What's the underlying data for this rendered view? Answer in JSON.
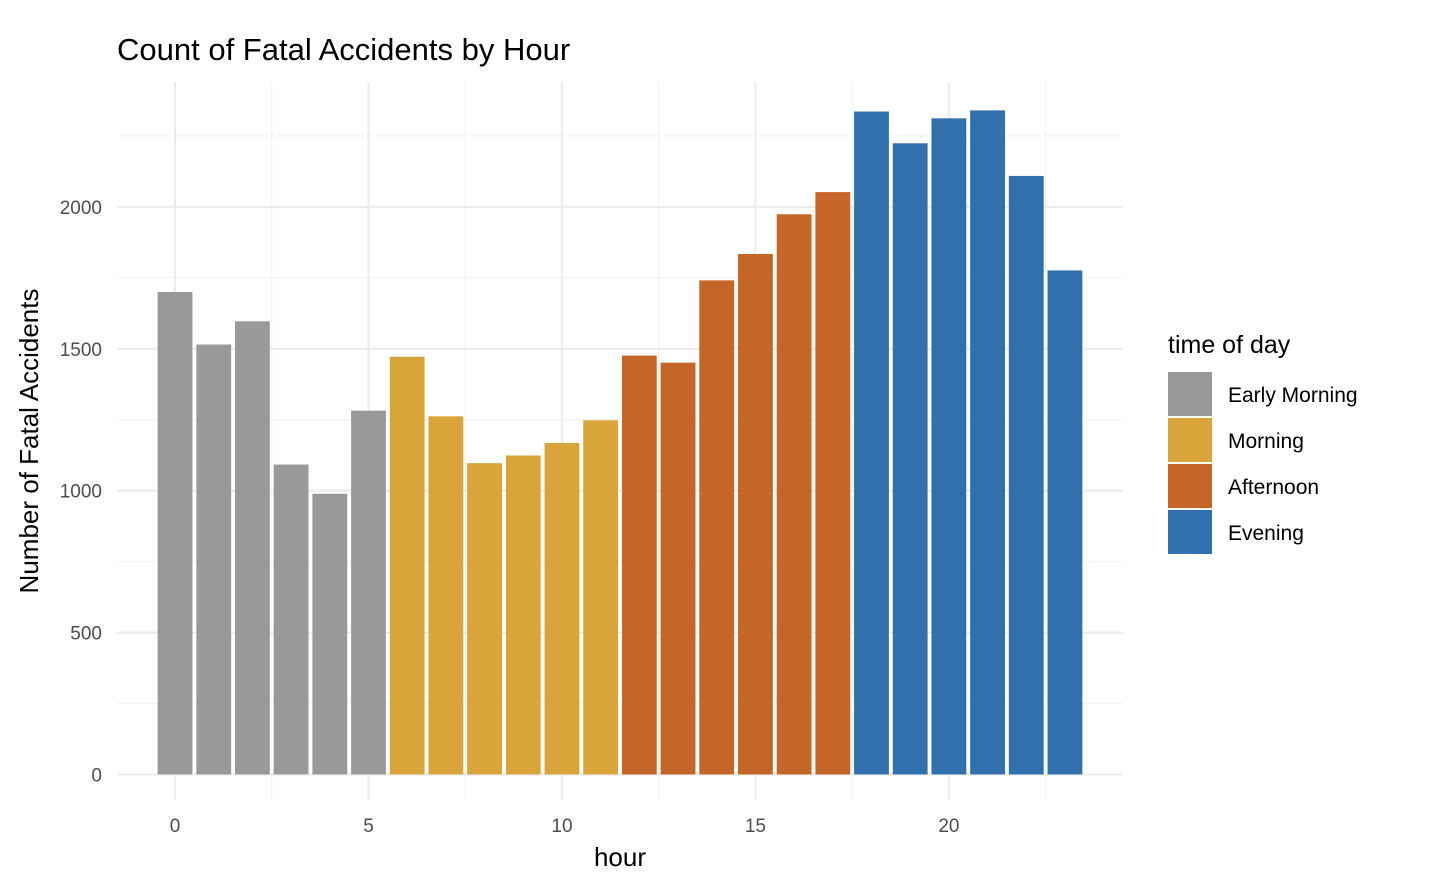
{
  "chart_data": {
    "type": "bar",
    "title": "Count of Fatal Accidents by Hour",
    "xlabel": "hour",
    "ylabel": "Number of Fatal Accidents",
    "xlim": [
      -1.5,
      24.5
    ],
    "ylim": [
      -90,
      2440
    ],
    "x_ticks": [
      0,
      5,
      10,
      15,
      20
    ],
    "y_ticks": [
      0,
      500,
      1000,
      1500,
      2000
    ],
    "grid": true,
    "legend": {
      "title": "time of day",
      "position": "right",
      "entries": [
        {
          "label": "Early Morning",
          "color": "#999999"
        },
        {
          "label": "Morning",
          "color": "#D9A43A"
        },
        {
          "label": "Afternoon",
          "color": "#C56628"
        },
        {
          "label": "Evening",
          "color": "#3071AD"
        }
      ]
    },
    "x": [
      0,
      1,
      2,
      3,
      4,
      5,
      6,
      7,
      8,
      9,
      10,
      11,
      12,
      13,
      14,
      15,
      16,
      17,
      18,
      19,
      20,
      21,
      22,
      23
    ],
    "values": [
      1700,
      1515,
      1597,
      1092,
      989,
      1282,
      1472,
      1262,
      1097,
      1124,
      1168,
      1248,
      1476,
      1451,
      1741,
      1834,
      1974,
      2052,
      2336,
      2224,
      2312,
      2340,
      2109,
      1776
    ],
    "group": [
      "Early Morning",
      "Early Morning",
      "Early Morning",
      "Early Morning",
      "Early Morning",
      "Early Morning",
      "Morning",
      "Morning",
      "Morning",
      "Morning",
      "Morning",
      "Morning",
      "Afternoon",
      "Afternoon",
      "Afternoon",
      "Afternoon",
      "Afternoon",
      "Afternoon",
      "Evening",
      "Evening",
      "Evening",
      "Evening",
      "Evening",
      "Evening"
    ]
  }
}
